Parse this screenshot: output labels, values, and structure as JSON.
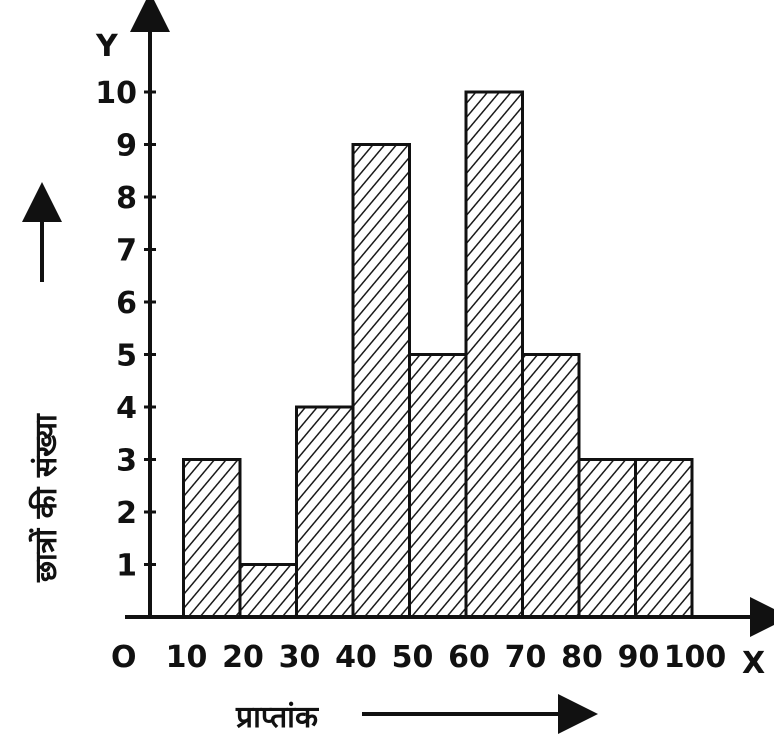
{
  "chart_data": {
    "type": "bar",
    "bins": [
      {
        "from": 10,
        "to": 20,
        "value": 3
      },
      {
        "from": 20,
        "to": 30,
        "value": 1
      },
      {
        "from": 30,
        "to": 40,
        "value": 4
      },
      {
        "from": 40,
        "to": 50,
        "value": 9
      },
      {
        "from": 50,
        "to": 60,
        "value": 5
      },
      {
        "from": 60,
        "to": 70,
        "value": 10
      },
      {
        "from": 70,
        "to": 80,
        "value": 5
      },
      {
        "from": 80,
        "to": 90,
        "value": 3
      },
      {
        "from": 90,
        "to": 100,
        "value": 3
      }
    ],
    "x_ticks": [
      10,
      20,
      30,
      40,
      50,
      60,
      70,
      80,
      90,
      100
    ],
    "y_ticks": [
      1,
      2,
      3,
      4,
      5,
      6,
      7,
      8,
      9,
      10
    ],
    "origin_label": "O",
    "x_axis_letter": "X",
    "y_axis_letter": "Y",
    "xlabel": "प्राप्तांक",
    "ylabel": "छात्रों की संख्या",
    "xlim": [
      0,
      100
    ],
    "ylim": [
      0,
      10
    ],
    "grid": false,
    "bar_fill": "hatched",
    "colors": {
      "ink": "#111111",
      "background": "#ffffff"
    }
  }
}
